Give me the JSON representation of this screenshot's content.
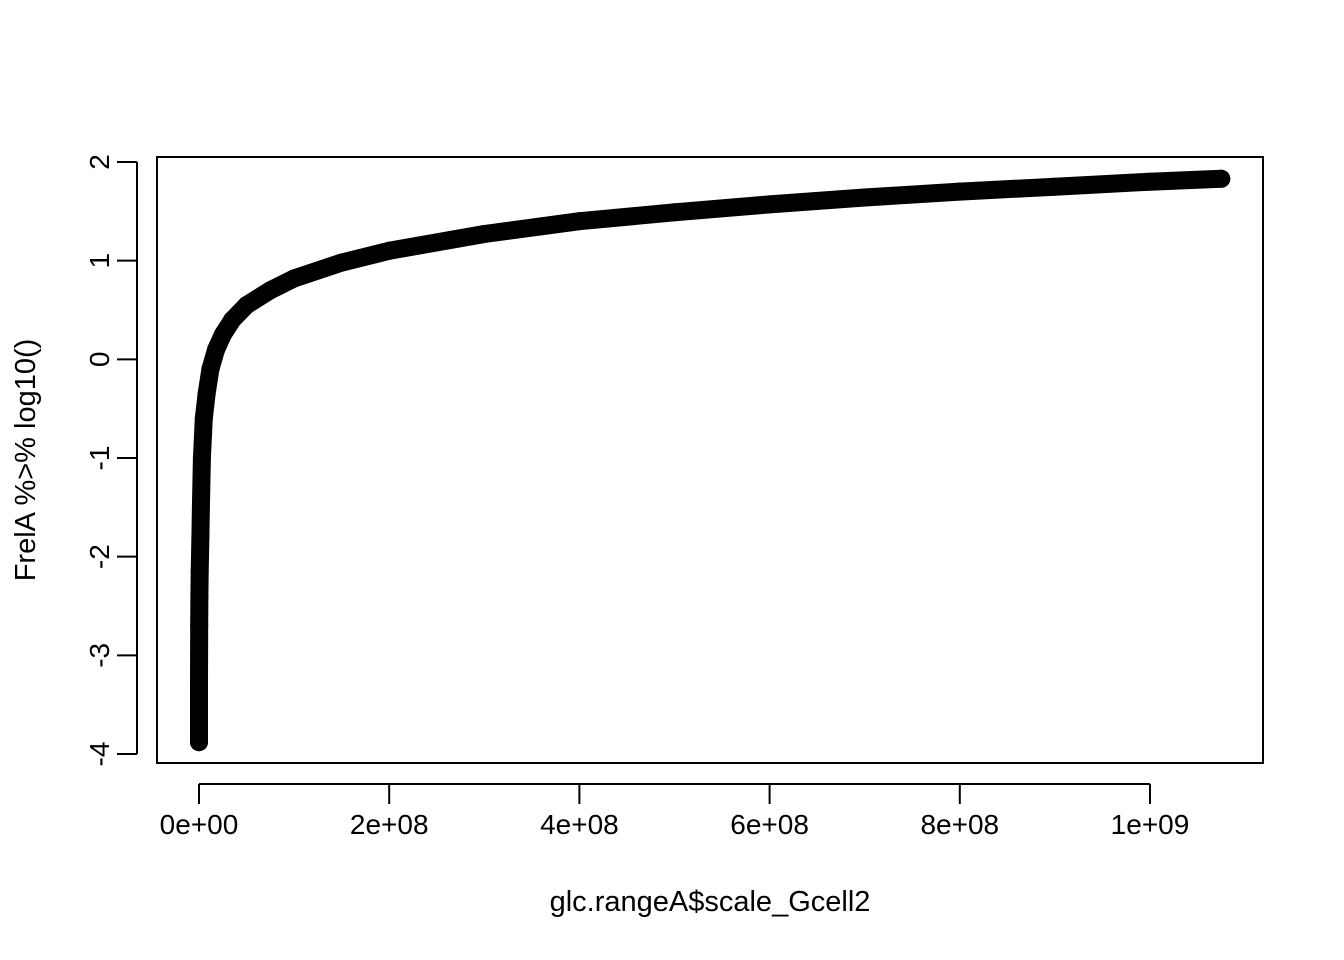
{
  "chart_data": {
    "type": "scatter",
    "title": "",
    "xlabel": "glc.rangeA$scale_Gcell2",
    "ylabel": "FrelA %>% log10()",
    "xlim": [
      -43000000,
      1120000000
    ],
    "ylim": [
      -4.1,
      2.05
    ],
    "x_ticks": [
      0,
      200000000,
      400000000,
      600000000,
      800000000,
      1000000000
    ],
    "x_tick_labels": [
      "0e+00",
      "2e+08",
      "4e+08",
      "6e+08",
      "8e+08",
      "1e+09"
    ],
    "y_ticks": [
      -4,
      -3,
      -2,
      -1,
      0,
      1,
      2
    ],
    "y_tick_labels": [
      "-4",
      "-3",
      "-2",
      "-1",
      "0",
      "1",
      "2"
    ],
    "grid": false,
    "legend": "none",
    "series": [
      {
        "color": "#000000",
        "points": [
          [
            0,
            -3.88
          ],
          [
            50000,
            -3.3
          ],
          [
            100000,
            -3.0
          ],
          [
            200000,
            -2.7
          ],
          [
            400000,
            -2.4
          ],
          [
            700000,
            -2.15
          ],
          [
            1000000,
            -2.0
          ],
          [
            1500000,
            -1.8
          ],
          [
            2000000,
            -1.5
          ],
          [
            3000000,
            -1.0
          ],
          [
            5000000,
            -0.6
          ],
          [
            8000000,
            -0.35
          ],
          [
            12000000,
            -0.1
          ],
          [
            18000000,
            0.1
          ],
          [
            25000000,
            0.25
          ],
          [
            35000000,
            0.4
          ],
          [
            50000000,
            0.55
          ],
          [
            75000000,
            0.7
          ],
          [
            100000000,
            0.82
          ],
          [
            150000000,
            0.98
          ],
          [
            200000000,
            1.1
          ],
          [
            300000000,
            1.27
          ],
          [
            400000000,
            1.4
          ],
          [
            500000000,
            1.49
          ],
          [
            600000000,
            1.57
          ],
          [
            700000000,
            1.64
          ],
          [
            800000000,
            1.7
          ],
          [
            900000000,
            1.75
          ],
          [
            1000000000,
            1.8
          ],
          [
            1075000000,
            1.83
          ]
        ]
      }
    ]
  }
}
